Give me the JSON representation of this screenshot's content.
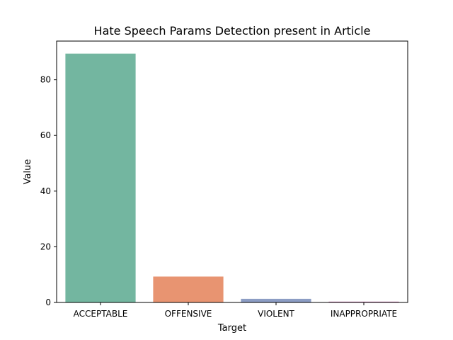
{
  "chart_data": {
    "type": "bar",
    "title": "Hate Speech Params Detection present in Article",
    "xlabel": "Target",
    "ylabel": "Value",
    "categories": [
      "ACCEPTABLE",
      "OFFENSIVE",
      "VIOLENT",
      "INAPPROPRIATE"
    ],
    "values": [
      89.4,
      9.3,
      1.3,
      0.3
    ],
    "colors": [
      "#73b6a0",
      "#e89471",
      "#8c9dc4",
      "#cf85b8"
    ],
    "ylim": [
      0,
      93.9
    ],
    "yticks": [
      0,
      20,
      40,
      60,
      80
    ],
    "grid": false,
    "legend": "none"
  }
}
